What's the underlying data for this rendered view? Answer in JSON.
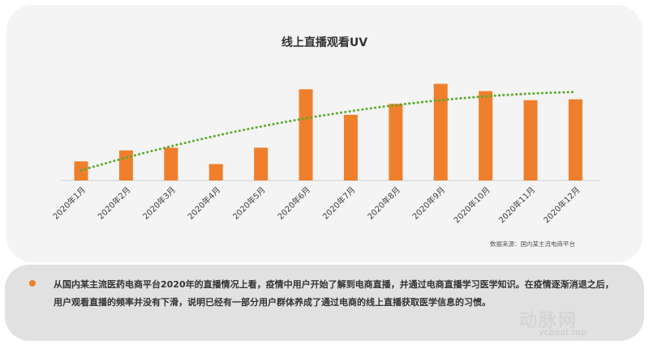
{
  "chart_data": {
    "type": "bar",
    "title": "线上直播观看UV",
    "categories": [
      "2020年1月",
      "2020年2月",
      "2020年3月",
      "2020年4月",
      "2020年5月",
      "2020年6月",
      "2020年7月",
      "2020年8月",
      "2020年9月",
      "2020年10月",
      "2020年11月",
      "2020年12月"
    ],
    "values": [
      21,
      33,
      36,
      18,
      36,
      100,
      72,
      84,
      106,
      98,
      88,
      89
    ],
    "trendline": {
      "style": "dotted",
      "type": "polynomial"
    },
    "ylim": [
      0,
      110
    ],
    "grid": false,
    "legend": "none",
    "colors": {
      "bar": "#ef7f2d",
      "trend": "#5aaa2a"
    }
  },
  "source": "数据来源：国内某主流电商平台",
  "note": {
    "paragraph": "从国内某主流医药电商平台2020年的直播情况上看，疫情中用户开始了解到电商直播，并通过电商直播学习医学知识。在疫情逐渐消退之后，用户观看直播的频率并没有下滑，说明已经有一部分用户群体养成了通过电商的线上直播获取医学信息的习惯。"
  },
  "watermark": {
    "logo": "动脉网",
    "url": "vcbeat.top"
  }
}
